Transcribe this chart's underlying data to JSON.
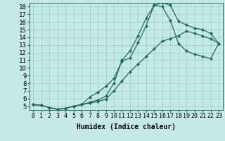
{
  "bg_color": "#c5eae5",
  "line_color": "#226b5a",
  "grid_color": "#99cccc",
  "xlabel": "Humidex (Indice chaleur)",
  "xlim": [
    -0.5,
    23.5
  ],
  "ylim": [
    4.5,
    18.5
  ],
  "xticks": [
    0,
    1,
    2,
    3,
    4,
    5,
    6,
    7,
    8,
    9,
    10,
    11,
    12,
    13,
    14,
    15,
    16,
    17,
    18,
    19,
    20,
    21,
    22,
    23
  ],
  "yticks": [
    5,
    6,
    7,
    8,
    9,
    10,
    11,
    12,
    13,
    14,
    15,
    16,
    17,
    18
  ],
  "line1_x": [
    0,
    1,
    2,
    3,
    4,
    5,
    6,
    7,
    8,
    9,
    10,
    11,
    12,
    13,
    14,
    15,
    16,
    17,
    18,
    19,
    20,
    21,
    22,
    23
  ],
  "line1_y": [
    5.2,
    5.1,
    4.8,
    4.6,
    4.7,
    5.0,
    5.2,
    6.2,
    6.8,
    7.6,
    8.6,
    10.9,
    11.3,
    13.3,
    15.5,
    18.2,
    18.5,
    18.2,
    16.1,
    15.6,
    15.2,
    15.0,
    14.5,
    13.2
  ],
  "line2_x": [
    0,
    1,
    2,
    3,
    4,
    5,
    6,
    7,
    8,
    9,
    10,
    11,
    12,
    13,
    14,
    15,
    16,
    17,
    18,
    19,
    20,
    21,
    22,
    23
  ],
  "line2_y": [
    5.2,
    5.1,
    4.8,
    4.6,
    4.7,
    5.0,
    5.2,
    5.5,
    5.8,
    6.3,
    8.0,
    11.0,
    12.2,
    14.2,
    16.5,
    18.2,
    18.0,
    16.2,
    13.2,
    12.2,
    11.8,
    11.5,
    11.2,
    13.2
  ],
  "line3_x": [
    0,
    1,
    2,
    3,
    4,
    5,
    6,
    7,
    8,
    9,
    10,
    11,
    12,
    13,
    14,
    15,
    16,
    17,
    18,
    19,
    20,
    21,
    22,
    23
  ],
  "line3_y": [
    5.2,
    5.1,
    4.8,
    4.6,
    4.7,
    5.0,
    5.2,
    5.4,
    5.6,
    5.9,
    7.0,
    8.3,
    9.5,
    10.5,
    11.5,
    12.5,
    13.5,
    13.8,
    14.2,
    14.8,
    14.5,
    14.2,
    13.8,
    13.2
  ],
  "marker": "D",
  "marker_size": 2.0,
  "line_width": 0.9,
  "font_size": 6.5
}
